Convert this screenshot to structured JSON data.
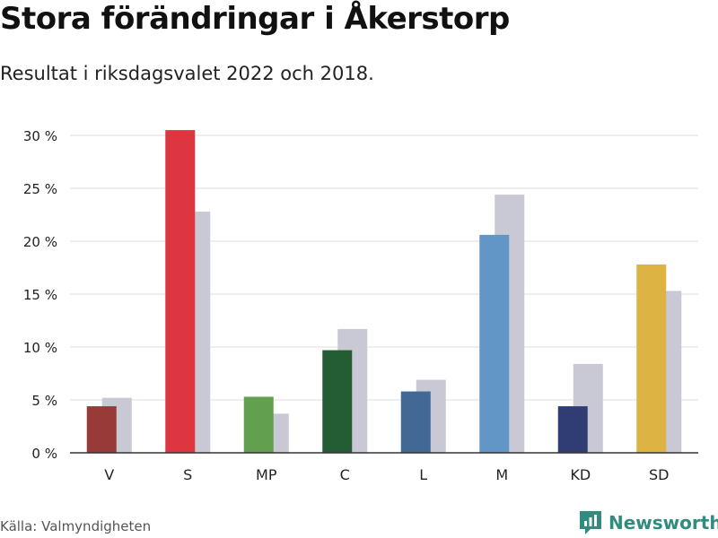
{
  "title": "Stora förändringar i Åkerstorp",
  "subtitle": "Resultat i riksdagsvalet 2022 och 2018.",
  "source": "Källa: Valmyndigheten",
  "brand": "Newsworthy",
  "brand_color": "#2f8c7e",
  "chart_data": {
    "type": "bar",
    "categories": [
      "V",
      "S",
      "MP",
      "C",
      "L",
      "M",
      "KD",
      "SD"
    ],
    "series": [
      {
        "values": [
          4.4,
          30.5,
          5.3,
          9.7,
          5.8,
          20.6,
          4.4,
          17.8
        ],
        "colors": [
          "#983a37",
          "#dd3640",
          "#62a04f",
          "#245c34",
          "#426996",
          "#6196c7",
          "#2f3d74",
          "#ddb344"
        ]
      },
      {
        "values": [
          5.2,
          22.8,
          3.7,
          11.7,
          6.9,
          24.4,
          8.4,
          15.3
        ],
        "color": "#c9c9d5"
      }
    ],
    "yticks": [
      "0 %",
      "5 %",
      "10 %",
      "15 %",
      "20 %",
      "25 %",
      "30 %"
    ],
    "ylim": [
      0,
      30
    ],
    "grid": true
  }
}
